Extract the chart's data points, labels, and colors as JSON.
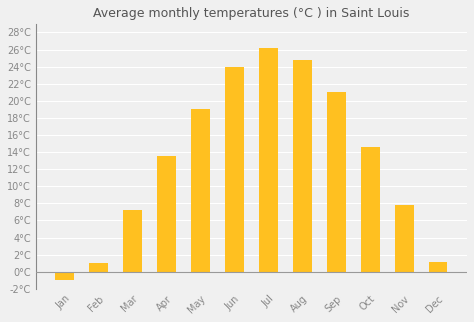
{
  "title": "Average monthly temperatures (°C ) in Saint Louis",
  "months": [
    "Jan",
    "Feb",
    "Mar",
    "Apr",
    "May",
    "Jun",
    "Jul",
    "Aug",
    "Sep",
    "Oct",
    "Nov",
    "Dec"
  ],
  "temperatures": [
    -1.0,
    1.0,
    7.2,
    13.5,
    19.0,
    23.9,
    26.2,
    24.8,
    21.0,
    14.6,
    7.8,
    1.1
  ],
  "bar_color": "#FFC020",
  "ylim": [
    -2,
    29
  ],
  "yticks": [
    -2,
    0,
    2,
    4,
    6,
    8,
    10,
    12,
    14,
    16,
    18,
    20,
    22,
    24,
    26,
    28
  ],
  "ytick_labels": [
    "-2°C",
    "0°C",
    "2°C",
    "4°C",
    "6°C",
    "8°C",
    "10°C",
    "12°C",
    "14°C",
    "16°C",
    "18°C",
    "20°C",
    "22°C",
    "24°C",
    "26°C",
    "28°C"
  ],
  "background_color": "#f0f0f0",
  "plot_bg_color": "#f0f0f0",
  "grid_color": "#ffffff",
  "title_fontsize": 9,
  "tick_fontsize": 7,
  "bar_width": 0.55,
  "zero_line_color": "#999999",
  "spine_color": "#888888"
}
